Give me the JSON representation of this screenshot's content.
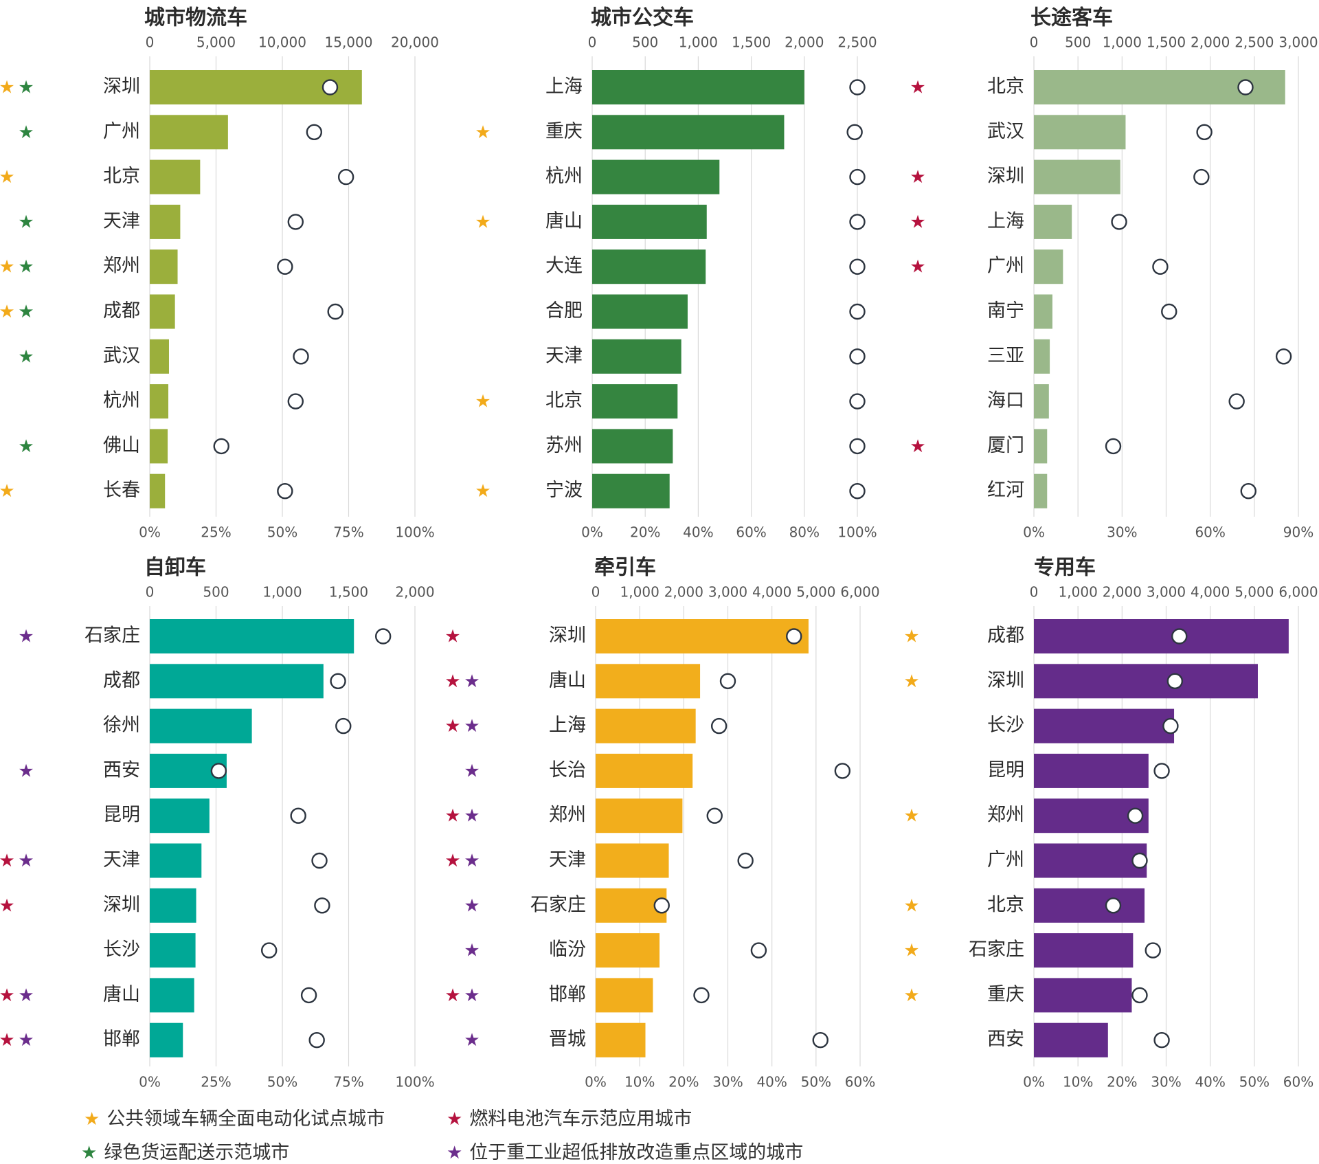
{
  "colors": {
    "text": "#2b2b2b",
    "tick": "#555555",
    "grid": "#d9d9d9",
    "circle_stroke": "#2d3540",
    "star_orange": "#F2AA1A",
    "star_green": "#2E8540",
    "star_red": "#B5123E",
    "star_purple": "#6B2D8C"
  },
  "legend": [
    {
      "star": "orange",
      "label": "公共领域车辆全面电动化试点城市"
    },
    {
      "star": "red",
      "label": "燃料电池汽车示范应用城市"
    },
    {
      "star": "green",
      "label": "绿色货运配送示范城市"
    },
    {
      "star": "purple",
      "label": "位于重工业超低排放改造重点区域的城市"
    }
  ],
  "chart_data": [
    {
      "type": "bar",
      "title": "城市物流车",
      "color": "#9BAF3C",
      "top_axis": {
        "min": 0,
        "max": 20000,
        "ticks": [
          "0",
          "5,000",
          "10,000",
          "15,000",
          "20,000"
        ]
      },
      "bottom_axis": {
        "min": 0,
        "max": 100,
        "ticks": [
          "0%",
          "25%",
          "50%",
          "75%",
          "100%"
        ]
      },
      "categories": [
        "深圳",
        "广州",
        "北京",
        "天津",
        "郑州",
        "成都",
        "武汉",
        "杭州",
        "佛山",
        "长春"
      ],
      "values": [
        16000,
        5900,
        3800,
        2300,
        2100,
        1900,
        1450,
        1400,
        1350,
        1150
      ],
      "share_pct": [
        68,
        62,
        74,
        55,
        51,
        70,
        57,
        55,
        27,
        51
      ],
      "stars": [
        [
          "orange",
          "green"
        ],
        [
          "green"
        ],
        [
          "orange"
        ],
        [
          "green"
        ],
        [
          "orange",
          "green"
        ],
        [
          "orange",
          "green"
        ],
        [
          "green"
        ],
        [],
        [
          "green"
        ],
        [
          "orange"
        ]
      ]
    },
    {
      "type": "bar",
      "title": "城市公交车",
      "color": "#358540",
      "top_axis": {
        "min": 0,
        "max": 2500,
        "ticks": [
          "0",
          "500",
          "1,000",
          "1,500",
          "2,000",
          "2,500"
        ]
      },
      "bottom_axis": {
        "min": 0,
        "max": 100,
        "ticks": [
          "0%",
          "20%",
          "40%",
          "60%",
          "80%",
          "100%"
        ]
      },
      "categories": [
        "上海",
        "重庆",
        "杭州",
        "唐山",
        "大连",
        "合肥",
        "天津",
        "北京",
        "苏州",
        "宁波"
      ],
      "values": [
        2000,
        1810,
        1200,
        1080,
        1070,
        900,
        840,
        805,
        760,
        730
      ],
      "share_pct": [
        100,
        99,
        100,
        100,
        100,
        100,
        100,
        100,
        100,
        100
      ],
      "stars": [
        [],
        [
          "orange"
        ],
        [],
        [
          "orange"
        ],
        [],
        [],
        [],
        [
          "orange"
        ],
        [],
        [
          "orange"
        ]
      ]
    },
    {
      "type": "bar",
      "title": "长途客车",
      "color": "#9AB88A",
      "top_axis": {
        "min": 0,
        "max": 3000,
        "ticks": [
          "0",
          "500",
          "1,000",
          "1,500",
          "2,000",
          "2,500",
          "3,000"
        ]
      },
      "bottom_axis": {
        "min": 0,
        "max": 90,
        "ticks": [
          "0%",
          "30%",
          "60%",
          "90%"
        ]
      },
      "categories": [
        "北京",
        "武汉",
        "深圳",
        "上海",
        "广州",
        "南宁",
        "三亚",
        "海口",
        "厦门",
        "红河"
      ],
      "values": [
        2850,
        1040,
        980,
        430,
        330,
        210,
        180,
        170,
        150,
        150
      ],
      "share_pct": [
        72,
        58,
        57,
        29,
        43,
        46,
        85,
        69,
        27,
        73
      ],
      "stars": [
        [
          "red"
        ],
        [],
        [
          "red"
        ],
        [
          "red"
        ],
        [
          "red"
        ],
        [],
        [],
        [],
        [
          "red"
        ],
        []
      ]
    },
    {
      "type": "bar",
      "title": "自卸车",
      "color": "#00A896",
      "top_axis": {
        "min": 0,
        "max": 2000,
        "ticks": [
          "0",
          "500",
          "1,000",
          "1,500",
          "2,000"
        ]
      },
      "bottom_axis": {
        "min": 0,
        "max": 100,
        "ticks": [
          "0%",
          "25%",
          "50%",
          "75%",
          "100%"
        ]
      },
      "categories": [
        "石家庄",
        "成都",
        "徐州",
        "西安",
        "昆明",
        "天津",
        "深圳",
        "长沙",
        "唐山",
        "邯郸"
      ],
      "values": [
        1540,
        1310,
        770,
        580,
        450,
        390,
        350,
        345,
        335,
        250
      ],
      "share_pct": [
        88,
        71,
        73,
        26,
        56,
        64,
        65,
        45,
        60,
        63
      ],
      "stars": [
        [
          "purple"
        ],
        [],
        [],
        [
          "purple"
        ],
        [],
        [
          "red",
          "purple"
        ],
        [
          "red"
        ],
        [],
        [
          "red",
          "purple"
        ],
        [
          "red",
          "purple"
        ]
      ]
    },
    {
      "type": "bar",
      "title": "牵引车",
      "color": "#F2AE1C",
      "top_axis": {
        "min": 0,
        "max": 6000,
        "ticks": [
          "0",
          "1,000",
          "2,000",
          "3,000",
          "4,000",
          "5,000",
          "6,000"
        ]
      },
      "bottom_axis": {
        "min": 0,
        "max": 60,
        "ticks": [
          "0%",
          "10%",
          "20%",
          "30%",
          "40%",
          "50%",
          "60%"
        ]
      },
      "categories": [
        "深圳",
        "唐山",
        "上海",
        "长治",
        "郑州",
        "天津",
        "石家庄",
        "临汾",
        "邯郸",
        "晋城"
      ],
      "values": [
        4830,
        2370,
        2270,
        2200,
        1970,
        1660,
        1610,
        1450,
        1300,
        1130
      ],
      "share_pct": [
        45,
        30,
        28,
        56,
        27,
        34,
        15,
        37,
        24,
        51
      ],
      "stars": [
        [
          "red"
        ],
        [
          "red",
          "purple"
        ],
        [
          "red",
          "purple"
        ],
        [
          "purple"
        ],
        [
          "red",
          "purple"
        ],
        [
          "red",
          "purple"
        ],
        [
          "purple"
        ],
        [
          "purple"
        ],
        [
          "red",
          "purple"
        ],
        [
          "purple"
        ]
      ]
    },
    {
      "type": "bar",
      "title": "专用车",
      "color": "#642C8A",
      "top_axis": {
        "min": 0,
        "max": 6000,
        "ticks": [
          "0",
          "1,000",
          "2,000",
          "3,000",
          "4,000",
          "5,000",
          "6,000"
        ]
      },
      "bottom_axis": {
        "min": 0,
        "max": 60,
        "ticks": [
          "0%",
          "10%",
          "20%",
          "30%",
          "40%",
          "50%",
          "60%"
        ]
      },
      "categories": [
        "成都",
        "深圳",
        "长沙",
        "昆明",
        "郑州",
        "广州",
        "北京",
        "石家庄",
        "重庆",
        "西安"
      ],
      "values": [
        5780,
        5080,
        3180,
        2600,
        2600,
        2560,
        2510,
        2250,
        2220,
        1680
      ],
      "share_pct": [
        33,
        32,
        31,
        29,
        23,
        24,
        18,
        27,
        24,
        29
      ],
      "stars": [
        [
          "orange"
        ],
        [
          "orange"
        ],
        [],
        [],
        [
          "orange"
        ],
        [],
        [
          "orange"
        ],
        [
          "orange"
        ],
        [
          "orange"
        ],
        []
      ]
    }
  ]
}
